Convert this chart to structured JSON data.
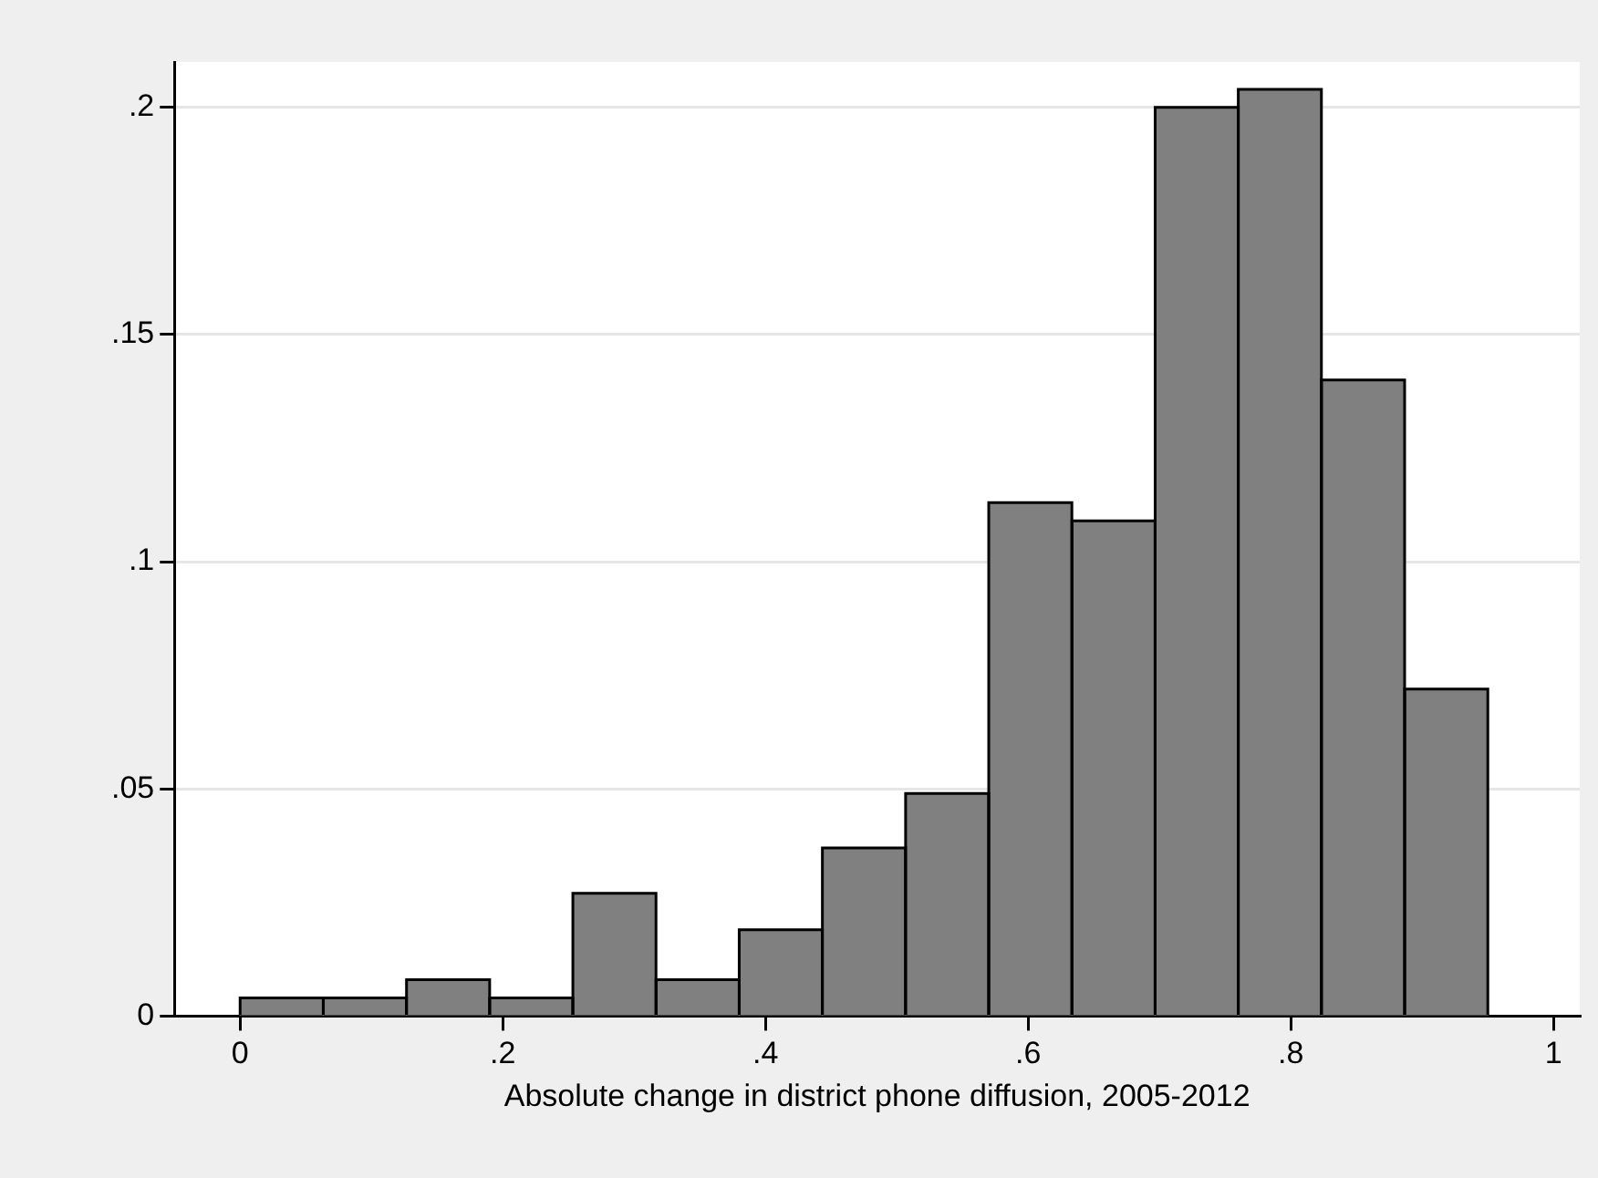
{
  "chart_data": {
    "type": "histogram",
    "xlabel": "Absolute change in district phone diffusion, 2005-2012",
    "bins": [
      0,
      0.0633,
      0.1267,
      0.19,
      0.2533,
      0.3167,
      0.38,
      0.4433,
      0.5067,
      0.57,
      0.6333,
      0.6967,
      0.76,
      0.8233,
      0.8867,
      0.95
    ],
    "values": [
      0.004,
      0.004,
      0.008,
      0.004,
      0.027,
      0.008,
      0.019,
      0.037,
      0.049,
      0.113,
      0.109,
      0.2,
      0.204,
      0.14,
      0.072
    ],
    "color": "#808080",
    "xlim": [
      -0.05,
      1.02
    ],
    "xticks": [
      {
        "value": 0,
        "label": "0"
      },
      {
        "value": 0.2,
        "label": ".2"
      },
      {
        "value": 0.4,
        "label": ".4"
      },
      {
        "value": 0.6,
        "label": ".6"
      },
      {
        "value": 0.8,
        "label": ".8"
      },
      {
        "value": 1,
        "label": "1"
      }
    ],
    "ylim": [
      0,
      0.21
    ],
    "yticks": [
      {
        "value": 0,
        "label": "0"
      },
      {
        "value": 0.05,
        "label": ".05"
      },
      {
        "value": 0.1,
        "label": ".1"
      },
      {
        "value": 0.15,
        "label": ".15"
      },
      {
        "value": 0.2,
        "label": ".2"
      }
    ],
    "grid": "y",
    "legend": false
  }
}
